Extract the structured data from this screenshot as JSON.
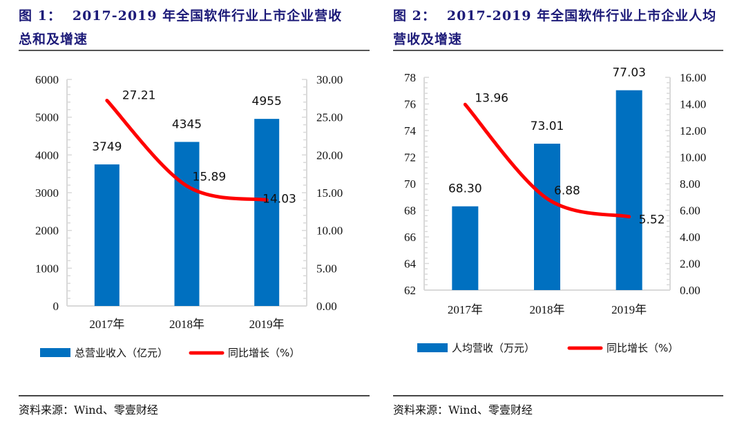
{
  "figures": [
    {
      "title_num": "图 1：",
      "title_text": "2017-2019 年全国软件行业上市企业营收",
      "title_line2": "总和及增速",
      "source": "资料来源：Wind、零壹财经"
    },
    {
      "title_num": "图 2：",
      "title_text": "2017-2019 年全国软件行业上市企业人均",
      "title_line2": "营收及增速",
      "source": "资料来源：Wind、零壹财经"
    }
  ],
  "colors": {
    "bar": "#0070c0",
    "line": "#ff0000",
    "title": "#1c1a78",
    "axis": "#d9d9d9"
  },
  "chart_data": [
    {
      "type": "bar+line",
      "title": "2017-2019 年全国软件行业上市企业营收总和及增速",
      "categories": [
        "2017年",
        "2018年",
        "2019年"
      ],
      "series": [
        {
          "name": "总营业收入（亿元）",
          "kind": "bar",
          "axis": "left",
          "values": [
            3749,
            4345,
            4955
          ],
          "labels": [
            "3749",
            "4345",
            "4955"
          ]
        },
        {
          "name": "同比增长（%）",
          "kind": "line",
          "axis": "right",
          "values": [
            27.21,
            15.89,
            14.03
          ],
          "labels": [
            "27.21",
            "15.89",
            "14.03"
          ]
        }
      ],
      "y_left": {
        "range": [
          0,
          6000
        ],
        "ticks": [
          "0",
          "1000",
          "2000",
          "3000",
          "4000",
          "5000",
          "6000"
        ]
      },
      "y_right": {
        "range": [
          0,
          30
        ],
        "ticks": [
          "0.00",
          "5.00",
          "10.00",
          "15.00",
          "20.00",
          "25.00",
          "30.00"
        ]
      },
      "legend": "bottom",
      "grid": false
    },
    {
      "type": "bar+line",
      "title": "2017-2019 年全国软件行业上市企业人均营收及增速",
      "categories": [
        "2017年",
        "2018年",
        "2019年"
      ],
      "series": [
        {
          "name": "人均营收（万元）",
          "kind": "bar",
          "axis": "left",
          "values": [
            68.3,
            73.01,
            77.03
          ],
          "labels": [
            "68.30",
            "73.01",
            "77.03"
          ]
        },
        {
          "name": "同比增长（%）",
          "kind": "line",
          "axis": "right",
          "values": [
            13.96,
            6.88,
            5.52
          ],
          "labels": [
            "13.96",
            "6.88",
            "5.52"
          ]
        }
      ],
      "y_left": {
        "range": [
          62,
          78
        ],
        "ticks": [
          "62",
          "64",
          "66",
          "68",
          "70",
          "72",
          "74",
          "76",
          "78"
        ]
      },
      "y_right": {
        "range": [
          0,
          16
        ],
        "ticks": [
          "0.00",
          "2.00",
          "4.00",
          "6.00",
          "8.00",
          "10.00",
          "12.00",
          "14.00",
          "16.00"
        ]
      },
      "legend": "bottom",
      "grid": false
    }
  ]
}
